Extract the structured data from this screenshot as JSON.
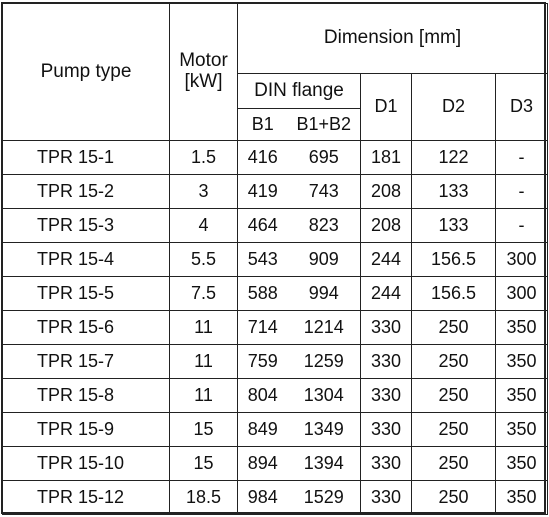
{
  "headers": {
    "pump_type": "Pump type",
    "motor_line1": "Motor",
    "motor_line2": "[kW]",
    "dimension": "Dimension [mm]",
    "din_flange": "DIN flange",
    "b1": "B1",
    "b1b2": "B1+B2",
    "d1": "D1",
    "d2": "D2",
    "d3": "D3"
  },
  "rows": [
    {
      "type": "TPR 15-1",
      "motor": "1.5",
      "b1": "416",
      "b1b2": "695",
      "d1": "181",
      "d2": "122",
      "d3": "-"
    },
    {
      "type": "TPR 15-2",
      "motor": "3",
      "b1": "419",
      "b1b2": "743",
      "d1": "208",
      "d2": "133",
      "d3": "-"
    },
    {
      "type": "TPR 15-3",
      "motor": "4",
      "b1": "464",
      "b1b2": "823",
      "d1": "208",
      "d2": "133",
      "d3": "-"
    },
    {
      "type": "TPR 15-4",
      "motor": "5.5",
      "b1": "543",
      "b1b2": "909",
      "d1": "244",
      "d2": "156.5",
      "d3": "300"
    },
    {
      "type": "TPR 15-5",
      "motor": "7.5",
      "b1": "588",
      "b1b2": "994",
      "d1": "244",
      "d2": "156.5",
      "d3": "300"
    },
    {
      "type": "TPR 15-6",
      "motor": "11",
      "b1": "714",
      "b1b2": "1214",
      "d1": "330",
      "d2": "250",
      "d3": "350"
    },
    {
      "type": "TPR 15-7",
      "motor": "11",
      "b1": "759",
      "b1b2": "1259",
      "d1": "330",
      "d2": "250",
      "d3": "350"
    },
    {
      "type": "TPR 15-8",
      "motor": "11",
      "b1": "804",
      "b1b2": "1304",
      "d1": "330",
      "d2": "250",
      "d3": "350"
    },
    {
      "type": "TPR 15-9",
      "motor": "15",
      "b1": "849",
      "b1b2": "1349",
      "d1": "330",
      "d2": "250",
      "d3": "350"
    },
    {
      "type": "TPR 15-10",
      "motor": "15",
      "b1": "894",
      "b1b2": "1394",
      "d1": "330",
      "d2": "250",
      "d3": "350"
    },
    {
      "type": "TPR 15-12",
      "motor": "18.5",
      "b1": "984",
      "b1b2": "1529",
      "d1": "330",
      "d2": "250",
      "d3": "350"
    }
  ]
}
